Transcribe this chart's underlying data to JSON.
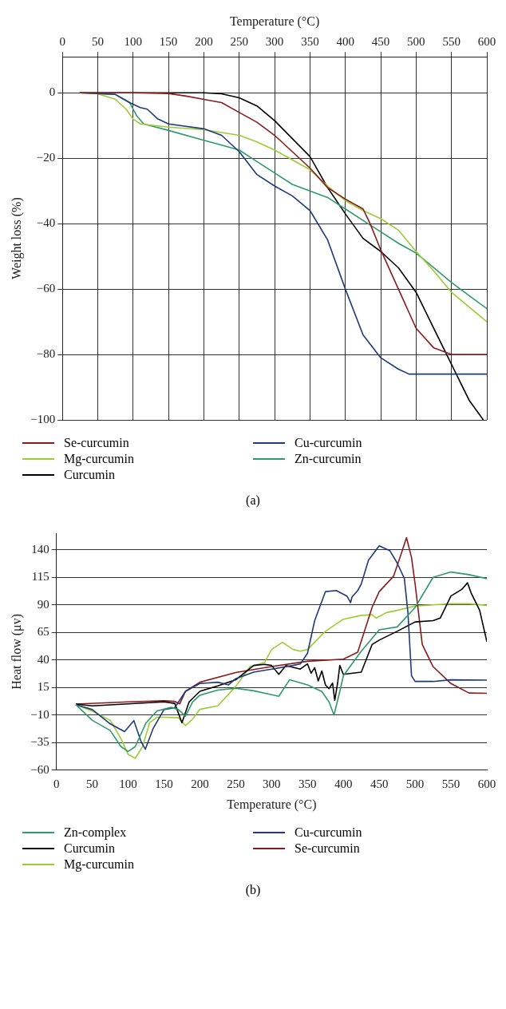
{
  "chart_data": [
    {
      "type": "line",
      "xlabel": "Temperature (°C)",
      "ylabel": "Weight loss (%)",
      "xlim": [
        0,
        600
      ],
      "xticks": [
        0,
        50,
        100,
        150,
        200,
        250,
        300,
        350,
        400,
        450,
        500,
        550,
        600
      ],
      "ylim": [
        -100,
        11
      ],
      "yticks": [
        -100,
        -80,
        -60,
        -40,
        -20,
        0
      ],
      "grid": true,
      "legend": "bottom",
      "marker": "none",
      "annotations": [
        "(a)"
      ],
      "series": [
        {
          "name": "Se-curcumin",
          "color": "#8b1a1a",
          "x": [
            25,
            100,
            150,
            175,
            200,
            225,
            250,
            275,
            300,
            325,
            350,
            375,
            400,
            425,
            435,
            450,
            475,
            500,
            525,
            550,
            600
          ],
          "values": [
            0,
            0,
            -0.2,
            -1,
            -2,
            -3,
            -6,
            -9,
            -13,
            -18,
            -23,
            -29,
            -32.5,
            -35.5,
            -40,
            -48,
            -60,
            -72,
            -78,
            -80,
            -80
          ]
        },
        {
          "name": "Cu-curcumin",
          "color": "#1f3a7a",
          "x": [
            25,
            75,
            95,
            110,
            120,
            135,
            150,
            200,
            225,
            250,
            275,
            300,
            325,
            350,
            375,
            400,
            425,
            450,
            475,
            490,
            600
          ],
          "values": [
            0,
            -0.5,
            -3,
            -4.5,
            -5,
            -8,
            -9.5,
            -11,
            -13,
            -18,
            -25,
            -28.5,
            -31.5,
            -36,
            -45,
            -60,
            -74,
            -81,
            -84.5,
            -86,
            -86
          ]
        },
        {
          "name": "Mg-curcumin",
          "color": "#9acd32",
          "x": [
            25,
            50,
            75,
            90,
            100,
            110,
            150,
            200,
            250,
            275,
            300,
            325,
            350,
            375,
            400,
            425,
            450,
            475,
            500,
            525,
            550,
            575,
            600
          ],
          "values": [
            0,
            -0.3,
            -2,
            -5,
            -8,
            -9.5,
            -10.5,
            -11.3,
            -13,
            -15,
            -17.5,
            -20.5,
            -23.5,
            -28.5,
            -33,
            -36,
            -38.5,
            -42,
            -48.5,
            -54.5,
            -61,
            -65.5,
            -70
          ]
        },
        {
          "name": "Zn-curcumin",
          "color": "#2e9a6a",
          "x": [
            25,
            75,
            95,
            105,
            115,
            150,
            200,
            225,
            250,
            275,
            300,
            325,
            350,
            375,
            400,
            425,
            450,
            475,
            500,
            525,
            550,
            575,
            600
          ],
          "values": [
            0,
            -0.5,
            -3,
            -7,
            -9.5,
            -11.5,
            -14.5,
            -16,
            -17.5,
            -21,
            -24.5,
            -28,
            -30,
            -32,
            -35.5,
            -39,
            -42.5,
            -46,
            -49,
            -53.5,
            -58,
            -62,
            -66
          ]
        },
        {
          "name": "Curcumin",
          "color": "#000000",
          "x": [
            25,
            200,
            225,
            250,
            275,
            300,
            325,
            350,
            375,
            400,
            425,
            450,
            475,
            500,
            525,
            550,
            575,
            595
          ],
          "values": [
            0,
            0,
            -0.3,
            -1.5,
            -4,
            -8.5,
            -14,
            -19.5,
            -29,
            -37,
            -44.5,
            -48.5,
            -53.5,
            -61,
            -72,
            -83,
            -94,
            -100
          ]
        }
      ]
    },
    {
      "type": "line",
      "xlabel": "Temperature (°C)",
      "ylabel": "Heat flow (μv)",
      "xlim": [
        0,
        600
      ],
      "xticks": [
        0,
        50,
        100,
        150,
        200,
        250,
        300,
        350,
        400,
        450,
        500,
        550,
        600
      ],
      "ylim": [
        -60,
        155
      ],
      "yticks": [
        -60,
        -35,
        -10,
        15,
        40,
        65,
        90,
        115,
        140
      ],
      "grid": "y",
      "legend": "bottom",
      "marker": "none",
      "annotations": [
        "(b)"
      ],
      "series": [
        {
          "name": "Zn-complex",
          "color": "#2e9a6a",
          "x": [
            27,
            50,
            75,
            90,
            100,
            110,
            125,
            140,
            160,
            170,
            180,
            190,
            200,
            225,
            250,
            275,
            300,
            310,
            325,
            350,
            370,
            380,
            387,
            395,
            400,
            425,
            450,
            475,
            500,
            525,
            550,
            575,
            600
          ],
          "values": [
            -0.5,
            -14.8,
            -24,
            -38.6,
            -43,
            -38.6,
            -17,
            -6.4,
            -3,
            -5,
            -11,
            2,
            8,
            12.6,
            14.3,
            12,
            8.5,
            7,
            22,
            17.4,
            11.4,
            2,
            -10,
            11.4,
            25.7,
            48,
            67.4,
            70,
            87.6,
            115,
            119.8,
            117.4,
            113.8
          ]
        },
        {
          "name": "Cu-curcumin",
          "color": "#1f3a7a",
          "x": [
            27,
            50,
            75,
            95,
            108,
            118,
            124,
            135,
            150,
            165,
            180,
            200,
            225,
            240,
            250,
            275,
            300,
            325,
            340,
            350,
            360,
            375,
            390,
            405,
            410,
            412,
            420,
            425,
            435,
            450,
            465,
            475,
            485,
            490,
            495,
            500,
            525,
            550,
            600
          ],
          "values": [
            -0.5,
            -5,
            -18,
            -25,
            -15,
            -34,
            -41,
            -22,
            -5,
            -3.3,
            11.6,
            18.6,
            19.8,
            17.4,
            23,
            29,
            31.7,
            34.5,
            36.4,
            46,
            75.7,
            102,
            103,
            98,
            92,
            97,
            103,
            109,
            130.5,
            143.6,
            139,
            128,
            114,
            83,
            25.7,
            20.5,
            20.5,
            22,
            21.7
          ]
        },
        {
          "name": "Curcumin",
          "color": "#000000",
          "x": [
            27,
            50,
            100,
            150,
            165,
            175,
            185,
            200,
            225,
            250,
            275,
            290,
            300,
            310,
            320,
            340,
            350,
            355,
            360,
            365,
            370,
            375,
            380,
            385,
            388,
            392,
            395,
            400,
            425,
            440,
            450,
            475,
            500,
            525,
            535,
            550,
            565,
            573,
            578,
            590,
            600
          ],
          "values": [
            0,
            -1.7,
            0.2,
            2,
            0.6,
            -17,
            2,
            11.6,
            16.4,
            22,
            35,
            36,
            35,
            27,
            35,
            31.7,
            36.4,
            28,
            33,
            21,
            30,
            17.4,
            14,
            19,
            3.3,
            19,
            35,
            27,
            29,
            54,
            58,
            66,
            74.5,
            75.7,
            78,
            98,
            104,
            110,
            101,
            85,
            56.7
          ]
        },
        {
          "name": "Se-curcumin",
          "color": "#8b1a1a",
          "x": [
            27,
            100,
            150,
            165,
            172,
            180,
            200,
            250,
            300,
            350,
            400,
            420,
            440,
            450,
            470,
            480,
            488,
            495,
            500,
            510,
            525,
            550,
            575,
            600
          ],
          "values": [
            0,
            2,
            3,
            2.4,
            0.2,
            11.6,
            19.8,
            28.6,
            34,
            38.8,
            40.7,
            47,
            87.6,
            102,
            116,
            135,
            151,
            133,
            109,
            54,
            34,
            18.6,
            10,
            9.8
          ]
        },
        {
          "name": "Mg-curcumin",
          "color": "#9acd32",
          "x": [
            27,
            50,
            75,
            90,
            100,
            110,
            120,
            130,
            140,
            150,
            170,
            180,
            190,
            200,
            225,
            250,
            270,
            290,
            300,
            315,
            330,
            340,
            350,
            375,
            400,
            425,
            440,
            446,
            460,
            475,
            500,
            525,
            550,
            575,
            600
          ],
          "values": [
            -0.5,
            -6.4,
            -14.8,
            -31.4,
            -45.7,
            -49.3,
            -38.6,
            -17,
            -12,
            -12,
            -12.4,
            -19.5,
            -13.6,
            -4.8,
            -1.7,
            16,
            34,
            37.6,
            49.5,
            56,
            49.5,
            48,
            49.5,
            66,
            77,
            80.5,
            81,
            78,
            83,
            85,
            89,
            90,
            91,
            91,
            89.5
          ]
        }
      ]
    }
  ]
}
